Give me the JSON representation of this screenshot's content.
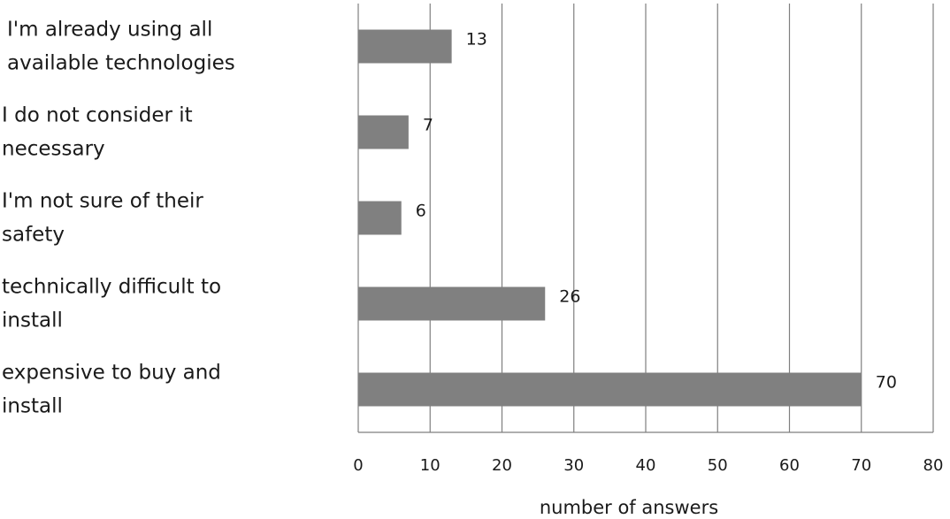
{
  "chart_data": {
    "type": "bar",
    "orientation": "horizontal",
    "categories": [
      "I'm already using all available technologies",
      "I do not consider it necessary",
      "I'm not sure of their safety",
      "technically difficult to install",
      "expensive to buy and install"
    ],
    "category_lines": [
      [
        "I'm already using all",
        "available technologies"
      ],
      [
        "I do not consider it",
        "necessary"
      ],
      [
        "I'm not sure of their",
        "safety"
      ],
      [
        "technically difficult to",
        "install"
      ],
      [
        "expensive to buy and",
        "install"
      ]
    ],
    "values": [
      13,
      7,
      6,
      26,
      70
    ],
    "data_labels": [
      "13",
      "7",
      "6",
      "26",
      "70"
    ],
    "xlabel": "number of answers",
    "ylabel": "",
    "title": "",
    "xlim": [
      0,
      80
    ],
    "x_ticks": [
      0,
      10,
      20,
      30,
      40,
      50,
      60,
      70,
      80
    ],
    "grid": true,
    "grid_axis": "x",
    "legend": "none",
    "colors": {
      "bar": "#808080",
      "grid": "#7f7f7f",
      "text": "#1a1a1a"
    }
  }
}
